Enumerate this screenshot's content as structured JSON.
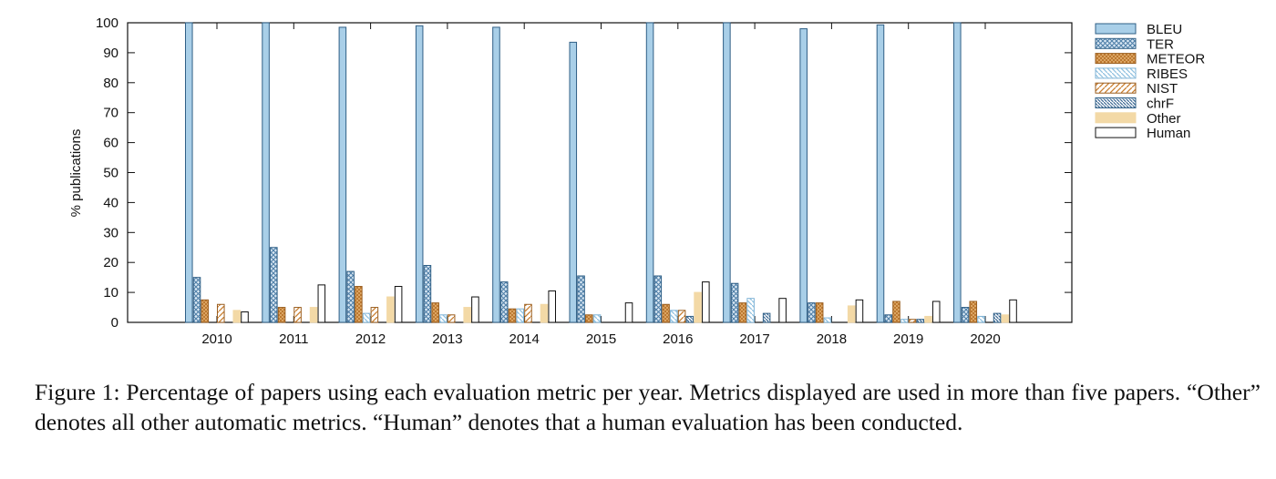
{
  "chart_data": {
    "type": "bar",
    "title": "",
    "xlabel": "",
    "ylabel": "% publications",
    "ylim": [
      0,
      100
    ],
    "yticks": [
      0,
      10,
      20,
      30,
      40,
      50,
      60,
      70,
      80,
      90,
      100
    ],
    "grid": false,
    "legend_position": "right",
    "categories": [
      "2010",
      "2011",
      "2012",
      "2013",
      "2014",
      "2015",
      "2016",
      "2017",
      "2018",
      "2019",
      "2020"
    ],
    "series": [
      {
        "name": "BLEU",
        "color": "#a9cfe8",
        "pattern": "solid",
        "values": [
          100,
          100,
          98.5,
          99,
          98.5,
          93.5,
          100,
          100,
          98,
          99.3,
          100
        ]
      },
      {
        "name": "TER",
        "color": "#4f7fa8",
        "pattern": "crosshatch",
        "values": [
          15,
          25,
          17,
          19,
          13.5,
          15.5,
          15.5,
          13,
          6.5,
          2.5,
          5
        ]
      },
      {
        "name": "METEOR",
        "color": "#d69a4f",
        "pattern": "crosshatch",
        "values": [
          7.5,
          5,
          12,
          6.5,
          4.5,
          2.5,
          6,
          6.5,
          6.5,
          7,
          7
        ]
      },
      {
        "name": "RIBES",
        "color": "#8fc1e0",
        "pattern": "diag-left",
        "values": [
          0,
          0,
          3,
          2.5,
          4.5,
          2.5,
          4,
          8,
          1.5,
          1,
          2
        ]
      },
      {
        "name": "NIST",
        "color": "#c97e2e",
        "pattern": "diag-right",
        "values": [
          6,
          5,
          5,
          2.5,
          6,
          0,
          4,
          0,
          0,
          1,
          0
        ]
      },
      {
        "name": "chrF",
        "color": "#3d6a94",
        "pattern": "diag-left",
        "values": [
          0,
          0,
          0,
          0,
          0,
          0,
          2,
          3,
          0,
          1,
          3
        ]
      },
      {
        "name": "Other",
        "color": "#f3d9a6",
        "pattern": "solid",
        "values": [
          4,
          5,
          8.5,
          5,
          6,
          0,
          10,
          0,
          5.5,
          2,
          2.5
        ]
      },
      {
        "name": "Human",
        "color": "#ffffff",
        "pattern": "outline",
        "values": [
          3.5,
          12.5,
          12,
          8.5,
          10.5,
          6.5,
          13.5,
          8,
          7.5,
          7,
          7.5
        ]
      }
    ]
  },
  "caption": {
    "text": "Figure 1: Percentage of papers using each evaluation metric per year. Metrics displayed are used in more than five papers. “Other” denotes all other automatic metrics. “Human” denotes that a human evaluation has been conducted."
  }
}
